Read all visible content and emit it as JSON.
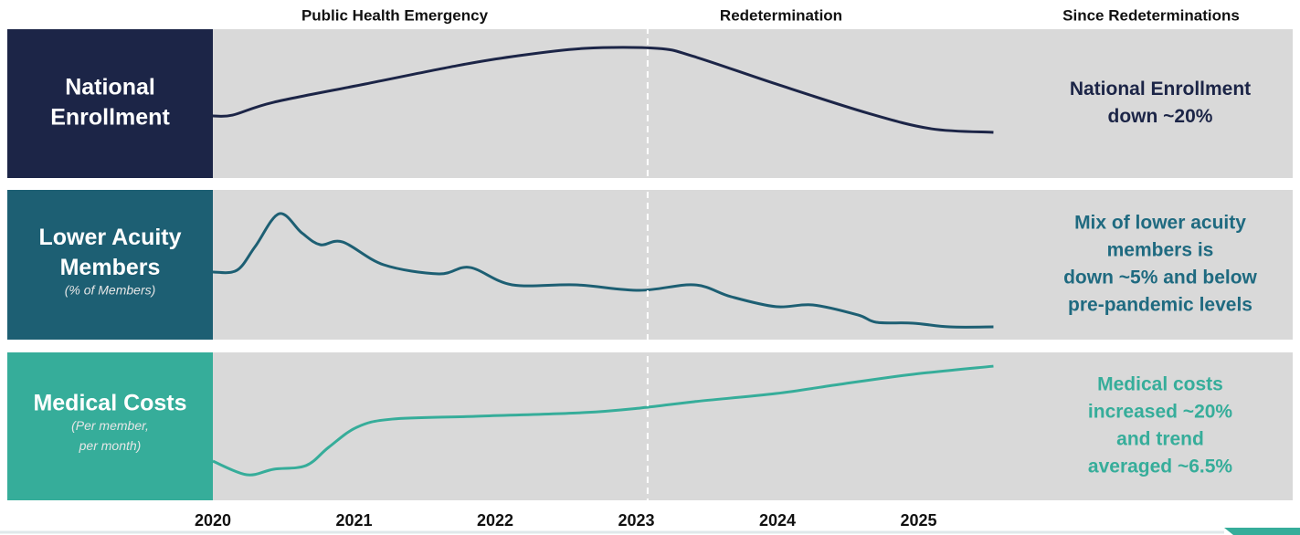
{
  "chart_data": {
    "type": "line",
    "phases": [
      "Public Health Emergency",
      "Redetermination",
      "Since Redeterminations"
    ],
    "xlim": [
      2020,
      2027.65
    ],
    "xticks": [
      2020,
      2021,
      2022,
      2023,
      2024,
      2025
    ],
    "divider_x": 2023.08,
    "panels": [
      {
        "title": [
          "National",
          "Enrollment"
        ],
        "subtitle": [],
        "annotation": [
          "National Enrollment",
          "down ~20%"
        ],
        "color": "#1c2547",
        "text_color": "#1c2547",
        "ylim": [
          0,
          100
        ],
        "x": [
          2020.0,
          2020.14,
          2020.43,
          2021.08,
          2021.73,
          2022.12,
          2022.63,
          2023.15,
          2023.41,
          2023.99,
          2024.64,
          2025.09,
          2025.53
        ],
        "values": [
          41.7,
          42.3,
          50.9,
          63.2,
          75.5,
          81.6,
          87.1,
          87.1,
          81.6,
          63.2,
          43.6,
          33.1,
          30.7
        ]
      },
      {
        "title": [
          "Lower Acuity",
          "Members"
        ],
        "subtitle": [
          "(% of Members)"
        ],
        "annotation": [
          "Mix of lower acuity",
          "members is",
          "down ~5% and below",
          "pre-pandemic levels"
        ],
        "color": "#1d5f73",
        "text_color": "#1f6a80",
        "ylim": [
          0,
          100
        ],
        "x": [
          2020.0,
          2020.17,
          2020.3,
          2020.47,
          2020.63,
          2020.76,
          2020.92,
          2021.21,
          2021.6,
          2021.82,
          2022.12,
          2022.57,
          2023.02,
          2023.41,
          2023.67,
          2023.99,
          2024.25,
          2024.57,
          2024.7,
          2024.96,
          2025.22,
          2025.53
        ],
        "values": [
          45.1,
          46.3,
          62.2,
          84.1,
          71.3,
          63.4,
          65.2,
          50.0,
          43.9,
          48.2,
          36.6,
          36.6,
          32.9,
          36.6,
          28.7,
          22.0,
          23.2,
          16.5,
          11.6,
          11.0,
          8.5,
          8.5
        ]
      },
      {
        "title": [
          "Medical Costs"
        ],
        "subtitle": [
          "(Per member,",
          "per month)"
        ],
        "annotation": [
          "Medical costs",
          "increased ~20%",
          "and trend",
          "averaged ~6.5%"
        ],
        "color": "#36ad9a",
        "text_color": "#36ad9a",
        "ylim": [
          0,
          100
        ],
        "x": [
          2020.0,
          2020.24,
          2020.43,
          2020.66,
          2020.82,
          2021.02,
          2021.27,
          2021.86,
          2022.63,
          2023.02,
          2023.41,
          2023.99,
          2024.44,
          2024.96,
          2025.53
        ],
        "values": [
          26.5,
          17.3,
          21.0,
          23.5,
          35.8,
          49.4,
          54.9,
          56.8,
          59.3,
          62.3,
          66.7,
          72.2,
          78.4,
          85.2,
          90.7
        ]
      }
    ]
  }
}
